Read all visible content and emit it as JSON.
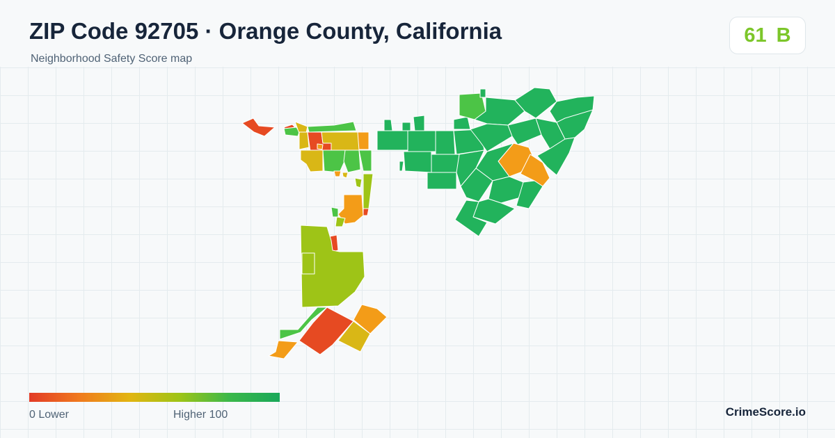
{
  "header": {
    "title": "ZIP Code 92705 · Orange County, California",
    "subtitle": "Neighborhood Safety Score map"
  },
  "score": {
    "value": "61",
    "grade": "B",
    "color": "#7cc62a"
  },
  "legend": {
    "min_label": "0  Lower",
    "max_label": "Higher  100",
    "colors": [
      "#e23b26",
      "#f07a1e",
      "#e2b511",
      "#9ec417",
      "#3bb84a",
      "#1aa85a"
    ]
  },
  "brand": "CrimeScore.io",
  "map": {
    "colors": {
      "red": "#e64a22",
      "orange": "#f39c18",
      "yellow": "#d9b716",
      "olive": "#9ec417",
      "lightgreen": "#4cc446",
      "green": "#22b35c"
    }
  }
}
